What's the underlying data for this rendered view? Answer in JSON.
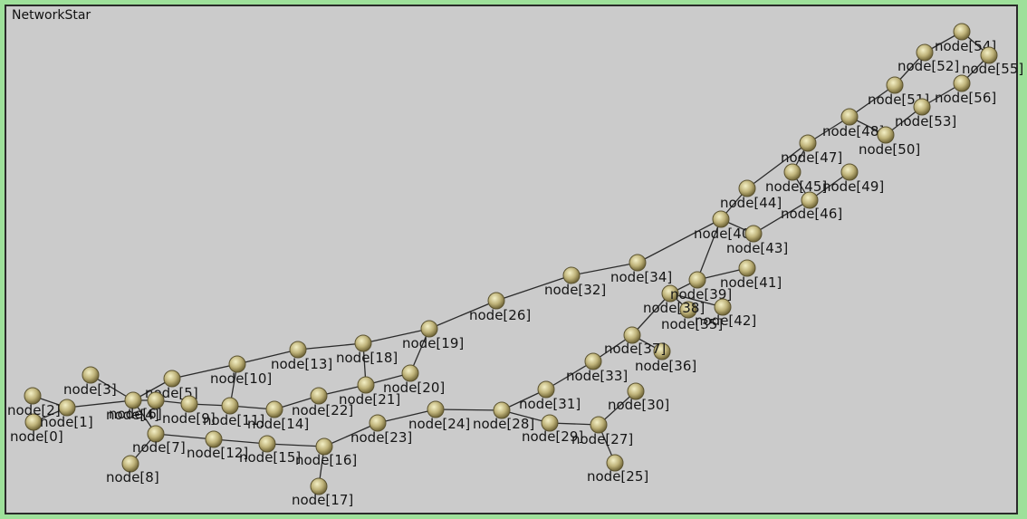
{
  "window": {
    "title": "NetworkStar"
  },
  "graph": {
    "nodes": [
      {
        "id": 0,
        "label": "node[0]"
      },
      {
        "id": 1,
        "label": "node[1]"
      },
      {
        "id": 2,
        "label": "node[2]"
      },
      {
        "id": 3,
        "label": "node[3]"
      },
      {
        "id": 4,
        "label": "node[4]"
      },
      {
        "id": 5,
        "label": "node[5]"
      },
      {
        "id": 6,
        "label": "node[6]"
      },
      {
        "id": 7,
        "label": "node[7]"
      },
      {
        "id": 8,
        "label": "node[8]"
      },
      {
        "id": 9,
        "label": "node[9]"
      },
      {
        "id": 10,
        "label": "node[10]"
      },
      {
        "id": 11,
        "label": "node[11]"
      },
      {
        "id": 12,
        "label": "node[12]"
      },
      {
        "id": 13,
        "label": "node[13]"
      },
      {
        "id": 14,
        "label": "node[14]"
      },
      {
        "id": 15,
        "label": "node[15]"
      },
      {
        "id": 16,
        "label": "node[16]"
      },
      {
        "id": 17,
        "label": "node[17]"
      },
      {
        "id": 18,
        "label": "node[18]"
      },
      {
        "id": 19,
        "label": "node[19]"
      },
      {
        "id": 20,
        "label": "node[20]"
      },
      {
        "id": 21,
        "label": "node[21]"
      },
      {
        "id": 22,
        "label": "node[22]"
      },
      {
        "id": 23,
        "label": "node[23]"
      },
      {
        "id": 24,
        "label": "node[24]"
      },
      {
        "id": 25,
        "label": "node[25]"
      },
      {
        "id": 26,
        "label": "node[26]"
      },
      {
        "id": 27,
        "label": "node[27]"
      },
      {
        "id": 28,
        "label": "node[28]"
      },
      {
        "id": 29,
        "label": "node[29]"
      },
      {
        "id": 30,
        "label": "node[30]"
      },
      {
        "id": 31,
        "label": "node[31]"
      },
      {
        "id": 32,
        "label": "node[32]"
      },
      {
        "id": 33,
        "label": "node[33]"
      },
      {
        "id": 34,
        "label": "node[34]"
      },
      {
        "id": 35,
        "label": "node[35]"
      },
      {
        "id": 36,
        "label": "node[36]"
      },
      {
        "id": 37,
        "label": "node[37]"
      },
      {
        "id": 38,
        "label": "node[38]"
      },
      {
        "id": 39,
        "label": "node[39]"
      },
      {
        "id": 40,
        "label": "node[40]"
      },
      {
        "id": 41,
        "label": "node[41]"
      },
      {
        "id": 42,
        "label": "node[42]"
      },
      {
        "id": 43,
        "label": "node[43]"
      },
      {
        "id": 44,
        "label": "node[44]"
      },
      {
        "id": 45,
        "label": "node[45]"
      },
      {
        "id": 46,
        "label": "node[46]"
      },
      {
        "id": 47,
        "label": "node[47]"
      },
      {
        "id": 48,
        "label": "node[48]"
      },
      {
        "id": 49,
        "label": "node[49]"
      },
      {
        "id": 50,
        "label": "node[50]"
      },
      {
        "id": 51,
        "label": "node[51]"
      },
      {
        "id": 52,
        "label": "node[52]"
      },
      {
        "id": 53,
        "label": "node[53]"
      },
      {
        "id": 54,
        "label": "node[54]"
      },
      {
        "id": 55,
        "label": "node[55]"
      },
      {
        "id": 56,
        "label": "node[56]"
      }
    ],
    "edges": [
      [
        0,
        1
      ],
      [
        2,
        1
      ],
      [
        1,
        4
      ],
      [
        3,
        4
      ],
      [
        4,
        6
      ],
      [
        4,
        5
      ],
      [
        4,
        7
      ],
      [
        7,
        8
      ],
      [
        6,
        9
      ],
      [
        9,
        11
      ],
      [
        11,
        14
      ],
      [
        14,
        22
      ],
      [
        22,
        21
      ],
      [
        21,
        20
      ],
      [
        20,
        19
      ],
      [
        21,
        18
      ],
      [
        18,
        13
      ],
      [
        13,
        10
      ],
      [
        10,
        5
      ],
      [
        10,
        11
      ],
      [
        18,
        19
      ],
      [
        19,
        26
      ],
      [
        26,
        32
      ],
      [
        32,
        34
      ],
      [
        34,
        40
      ],
      [
        7,
        12
      ],
      [
        12,
        15
      ],
      [
        15,
        16
      ],
      [
        16,
        17
      ],
      [
        16,
        23
      ],
      [
        23,
        24
      ],
      [
        24,
        28
      ],
      [
        28,
        31
      ],
      [
        28,
        29
      ],
      [
        29,
        27
      ],
      [
        27,
        25
      ],
      [
        27,
        30
      ],
      [
        31,
        33
      ],
      [
        33,
        37
      ],
      [
        37,
        38
      ],
      [
        37,
        36
      ],
      [
        38,
        39
      ],
      [
        39,
        41
      ],
      [
        39,
        40
      ],
      [
        40,
        43
      ],
      [
        43,
        46
      ],
      [
        40,
        44
      ],
      [
        44,
        47
      ],
      [
        47,
        48
      ],
      [
        48,
        51
      ],
      [
        51,
        52
      ],
      [
        52,
        54
      ],
      [
        54,
        55
      ],
      [
        55,
        56
      ],
      [
        56,
        53
      ],
      [
        53,
        50
      ],
      [
        48,
        50
      ],
      [
        46,
        49
      ],
      [
        46,
        45
      ],
      [
        45,
        47
      ],
      [
        38,
        42
      ],
      [
        38,
        35
      ]
    ]
  }
}
